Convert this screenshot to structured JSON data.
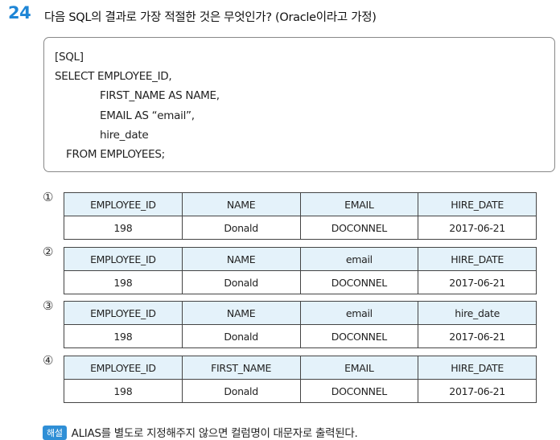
{
  "question": {
    "number": "24",
    "text": "다음 SQL의 결과로 가장 적절한 것은 무엇인가? (Oracle이라고 가정)"
  },
  "sql": {
    "label": "[SQL]",
    "lines": [
      "SELECT EMPLOYEE_ID,",
      "FIRST_NAME AS NAME,",
      "EMAIL AS “email”,",
      "hire_date",
      "FROM EMPLOYEES;"
    ]
  },
  "options": [
    {
      "marker": "①",
      "headers": [
        "EMPLOYEE_ID",
        "NAME",
        "EMAIL",
        "HIRE_DATE"
      ],
      "row": [
        "198",
        "Donald",
        "DOCONNEL",
        "2017-06-21"
      ]
    },
    {
      "marker": "②",
      "headers": [
        "EMPLOYEE_ID",
        "NAME",
        "email",
        "HIRE_DATE"
      ],
      "row": [
        "198",
        "Donald",
        "DOCONNEL",
        "2017-06-21"
      ]
    },
    {
      "marker": "③",
      "headers": [
        "EMPLOYEE_ID",
        "NAME",
        "email",
        "hire_date"
      ],
      "row": [
        "198",
        "Donald",
        "DOCONNEL",
        "2017-06-21"
      ]
    },
    {
      "marker": "④",
      "headers": [
        "EMPLOYEE_ID",
        "FIRST_NAME",
        "EMAIL",
        "HIRE_DATE"
      ],
      "row": [
        "198",
        "Donald",
        "DOCONNEL",
        "2017-06-21"
      ]
    }
  ],
  "explanation": {
    "badge": "해설",
    "text": "ALIAS를 별도로 지정해주지 않으면 컬럼명이 대문자로 출력된다."
  }
}
